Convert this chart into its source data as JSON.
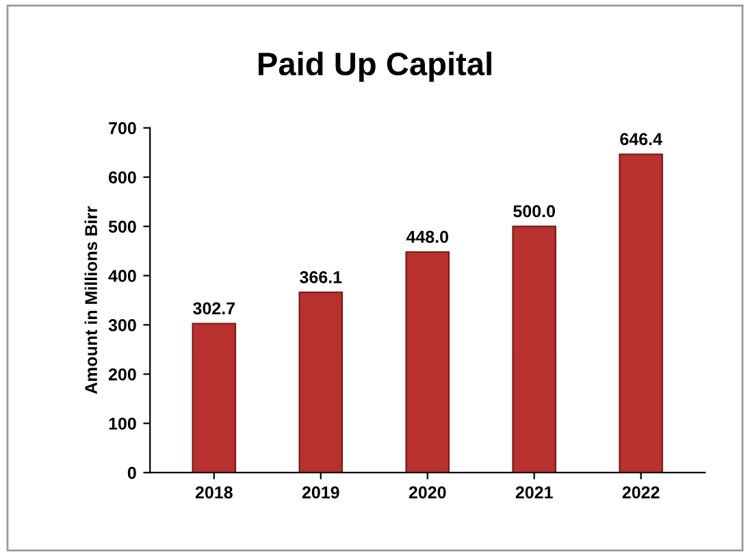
{
  "chart_data": {
    "type": "bar",
    "title": "Paid Up Capital",
    "ylabel": "Amount in Millions Birr",
    "categories": [
      "2018",
      "2019",
      "2020",
      "2021",
      "2022"
    ],
    "values": [
      302.7,
      366.1,
      448.0,
      500.0,
      646.4
    ],
    "value_labels": [
      "302.7",
      "366.1",
      "448.0",
      "500.0",
      "646.4"
    ],
    "color": "#b8312f",
    "ylim": [
      0,
      700
    ],
    "yticks": [
      0,
      100,
      200,
      300,
      400,
      500,
      600,
      700
    ],
    "grid": false
  }
}
